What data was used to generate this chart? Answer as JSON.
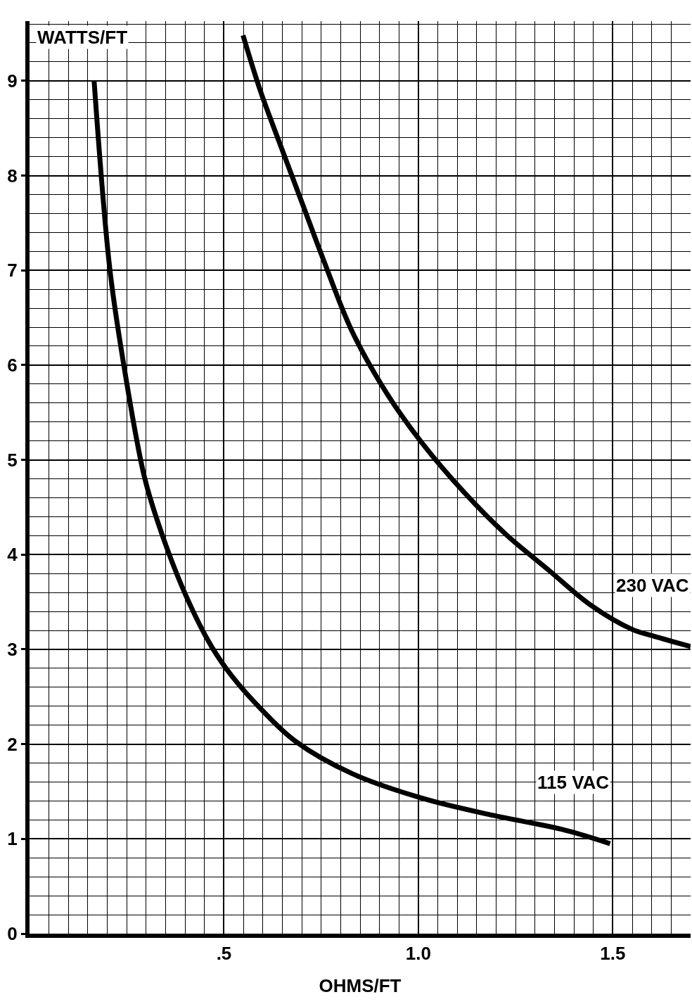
{
  "chart_data": {
    "type": "line",
    "xlabel": "OHMS/FT",
    "ylabel": "WATTS/FT",
    "xlim": [
      0,
      1.7
    ],
    "ylim": [
      0,
      9.63
    ],
    "xticks": [
      {
        "value": 0.5,
        "label": ".5"
      },
      {
        "value": 1.0,
        "label": "1.0"
      },
      {
        "value": 1.5,
        "label": "1.5"
      }
    ],
    "yticks": [
      0,
      1,
      2,
      3,
      4,
      5,
      6,
      7,
      8,
      9
    ],
    "grid": true,
    "legend": false,
    "marker": "none",
    "line_style": "solid",
    "series": [
      {
        "name": "230 VAC",
        "color": "#000000",
        "x": [
          0.549,
          0.594,
          0.648,
          0.702,
          0.756,
          0.829,
          0.919,
          1.009,
          1.117,
          1.226,
          1.334,
          1.442,
          1.55,
          1.605,
          1.7
        ],
        "values": [
          9.48,
          8.89,
          8.29,
          7.7,
          7.11,
          6.36,
          5.7,
          5.18,
          4.66,
          4.21,
          3.84,
          3.47,
          3.21,
          3.14,
          3.03
        ]
      },
      {
        "name": "115 VAC",
        "color": "#000000",
        "x": [
          0.166,
          0.206,
          0.242,
          0.296,
          0.341,
          0.404,
          0.468,
          0.52,
          0.6,
          0.684,
          0.829,
          1.009,
          1.19,
          1.37,
          1.493
        ],
        "values": [
          9.0,
          7.03,
          6.01,
          4.81,
          4.21,
          3.55,
          3.03,
          2.72,
          2.35,
          2.03,
          1.69,
          1.43,
          1.25,
          1.1,
          0.95
        ]
      }
    ]
  }
}
